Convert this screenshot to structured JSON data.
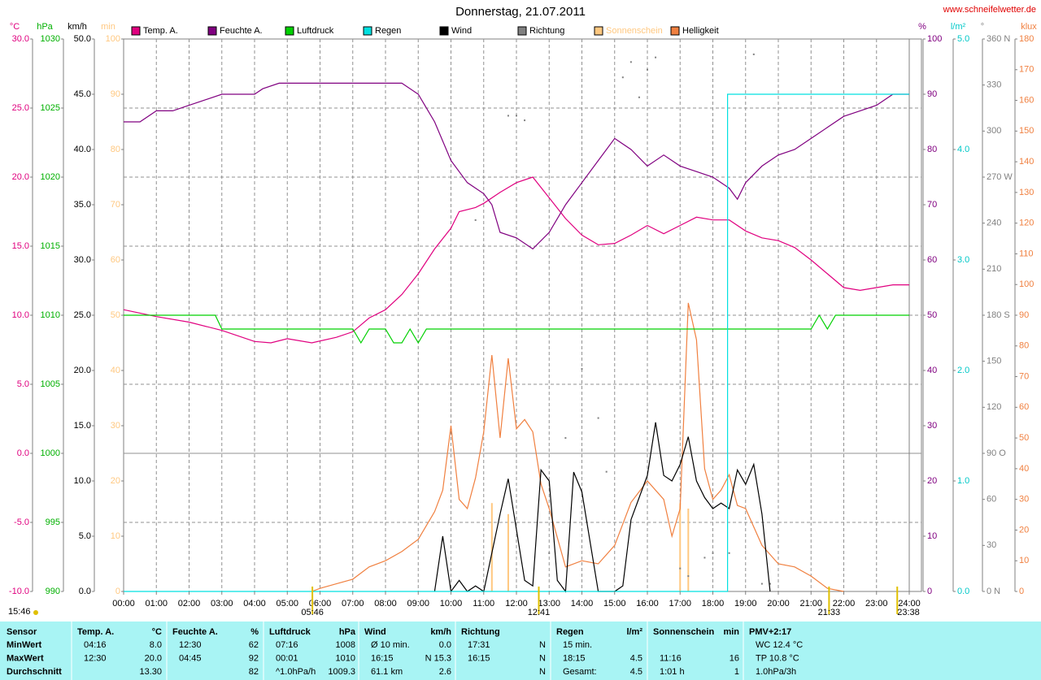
{
  "chart_data": {
    "type": "line",
    "title": "Donnerstag, 21.07.2011",
    "source": "www.schneifelwetter.de",
    "updated": "15:46",
    "xlim": [
      0,
      24
    ],
    "xticks": [
      {
        "value": 0,
        "label": "00:00"
      },
      {
        "value": 1,
        "label": "01:00"
      },
      {
        "value": 2,
        "label": "02:00"
      },
      {
        "value": 3,
        "label": "03:00"
      },
      {
        "value": 4,
        "label": "04:00"
      },
      {
        "value": 5,
        "label": "05:00"
      },
      {
        "value": 6,
        "label": "06:00"
      },
      {
        "value": 7,
        "label": "07:00"
      },
      {
        "value": 8,
        "label": "08:00"
      },
      {
        "value": 9,
        "label": "09:00"
      },
      {
        "value": 10,
        "label": "10:00"
      },
      {
        "value": 11,
        "label": "11:00"
      },
      {
        "value": 12,
        "label": "12:00"
      },
      {
        "value": 13,
        "label": "13:00"
      },
      {
        "value": 14,
        "label": "14:00"
      },
      {
        "value": 15,
        "label": "15:00"
      },
      {
        "value": 16,
        "label": "16:00"
      },
      {
        "value": 17,
        "label": "17:00"
      },
      {
        "value": 18,
        "label": "18:00"
      },
      {
        "value": 19,
        "label": "19:00"
      },
      {
        "value": 20,
        "label": "20:00"
      },
      {
        "value": 21,
        "label": "21:00"
      },
      {
        "value": 22,
        "label": "22:00"
      },
      {
        "value": 23,
        "label": "23:00"
      },
      {
        "value": 24,
        "label": "24:00"
      }
    ],
    "annotations": [
      {
        "value": 5.7667,
        "label": "05:46"
      },
      {
        "value": 12.6833,
        "label": "12:41"
      },
      {
        "value": 21.55,
        "label": "21:33"
      },
      {
        "value": 23.6333,
        "label": "23:38"
      }
    ],
    "grid": true,
    "axes": [
      {
        "label": "°C",
        "side": "left",
        "color": "#e0007f",
        "lim": [
          -10,
          30
        ],
        "ticks": [
          {
            "value": 30,
            "label": "30.0"
          },
          {
            "value": 25,
            "label": "25.0"
          },
          {
            "value": 20,
            "label": "20.0"
          },
          {
            "value": 15,
            "label": "15.0"
          },
          {
            "value": 10,
            "label": "10.0"
          },
          {
            "value": 5,
            "label": "5.0"
          },
          {
            "value": 0,
            "label": "0.0"
          },
          {
            "value": -5,
            "label": "-5.0"
          },
          {
            "value": -10,
            "label": "-10.0"
          }
        ]
      },
      {
        "label": "hPa",
        "side": "left",
        "color": "#00b000",
        "lim": [
          990,
          1030
        ],
        "ticks": [
          1030,
          1025,
          1020,
          1015,
          1010,
          1005,
          1000,
          995,
          990
        ]
      },
      {
        "label": "km/h",
        "side": "left",
        "color": "#000000",
        "lim": [
          0,
          50
        ],
        "ticks": [
          {
            "value": 50,
            "label": "50.0"
          },
          {
            "value": 45,
            "label": "45.0"
          },
          {
            "value": 40,
            "label": "40.0"
          },
          {
            "value": 35,
            "label": "35.0"
          },
          {
            "value": 30,
            "label": "30.0"
          },
          {
            "value": 25,
            "label": "25.0"
          },
          {
            "value": 20,
            "label": "20.0"
          },
          {
            "value": 15,
            "label": "15.0"
          },
          {
            "value": 10,
            "label": "10.0"
          },
          {
            "value": 5,
            "label": "5.0"
          },
          {
            "value": 0,
            "label": "0.0"
          }
        ]
      },
      {
        "label": "min",
        "side": "left",
        "color": "#ffc880",
        "lim": [
          0,
          100
        ],
        "ticks": [
          100,
          90,
          80,
          70,
          60,
          50,
          40,
          30,
          20,
          10,
          0
        ]
      },
      {
        "label": "%",
        "side": "right",
        "color": "#800080",
        "lim": [
          0,
          100
        ],
        "ticks": [
          100,
          90,
          80,
          70,
          60,
          50,
          40,
          30,
          20,
          10,
          0
        ]
      },
      {
        "label": "l/m²",
        "side": "right",
        "color": "#00c8c8",
        "lim": [
          0,
          5
        ],
        "ticks": [
          {
            "value": 5,
            "label": "5.0"
          },
          {
            "value": 4,
            "label": "4.0"
          },
          {
            "value": 3,
            "label": "3.0"
          },
          {
            "value": 2,
            "label": "2.0"
          },
          {
            "value": 1,
            "label": "1.0"
          },
          {
            "value": 0,
            "label": "0.0"
          }
        ]
      },
      {
        "label": "°",
        "side": "right",
        "color": "#808080",
        "lim": [
          0,
          360
        ],
        "ticks": [
          {
            "value": 360,
            "label": "360 N"
          },
          330,
          300,
          {
            "value": 270,
            "label": "270 W"
          },
          240,
          210,
          {
            "value": 180,
            "label": "180 S"
          },
          150,
          120,
          {
            "value": 90,
            "label": "90 O"
          },
          60,
          30,
          {
            "value": 0,
            "label": "0 N"
          }
        ]
      },
      {
        "label": "klux",
        "side": "right",
        "color": "#f08040",
        "lim": [
          0,
          180
        ],
        "ticks": [
          180,
          170,
          160,
          150,
          140,
          130,
          120,
          110,
          100,
          90,
          80,
          70,
          60,
          50,
          40,
          30,
          20,
          10,
          0
        ]
      }
    ],
    "series": [
      {
        "name": "Temp. A.",
        "color": "#e0007f",
        "axis": 0,
        "style": "line",
        "x": [
          0,
          1,
          2,
          3,
          4,
          4.5,
          5,
          5.75,
          6.5,
          7,
          7.5,
          8,
          8.5,
          9,
          9.5,
          10,
          10.25,
          10.75,
          11,
          11.5,
          12,
          12.5,
          13,
          13.5,
          14,
          14.5,
          15,
          15.5,
          16,
          16.5,
          17,
          17.5,
          18,
          18.5,
          19,
          19.5,
          20,
          20.5,
          21,
          21.5,
          22,
          22.5,
          23,
          23.5,
          24
        ],
        "values": [
          10.4,
          9.9,
          9.5,
          8.9,
          8.1,
          8.0,
          8.3,
          8.0,
          8.4,
          8.8,
          9.8,
          10.4,
          11.5,
          13.0,
          14.8,
          16.3,
          17.5,
          17.8,
          18.1,
          18.9,
          19.6,
          20.0,
          18.5,
          17.0,
          15.8,
          15.1,
          15.2,
          15.8,
          16.5,
          15.9,
          16.5,
          17.1,
          16.9,
          16.9,
          16.1,
          15.6,
          15.4,
          14.9,
          14.0,
          13.0,
          12.0,
          11.8,
          12.0,
          12.2,
          12.2
        ]
      },
      {
        "name": "Feuchte A.",
        "color": "#800080",
        "axis": 4,
        "style": "line",
        "x": [
          0,
          0.5,
          1,
          1.5,
          2,
          2.5,
          3,
          4,
          4.25,
          4.75,
          8.5,
          9,
          9.5,
          10,
          10.5,
          11,
          11.25,
          11.5,
          12,
          12.5,
          13,
          13.5,
          14,
          14.5,
          15,
          15.5,
          16,
          16.5,
          17,
          17.5,
          18,
          18.5,
          18.75,
          19,
          19.5,
          20,
          20.5,
          21,
          21.5,
          22,
          22.5,
          23,
          23.5,
          24
        ],
        "values": [
          85,
          85,
          87,
          87,
          88,
          89,
          90,
          90,
          91,
          92,
          92,
          90,
          85,
          78,
          74,
          72,
          70,
          65,
          64,
          62,
          65,
          70,
          74,
          78,
          82,
          80,
          77,
          79,
          77,
          76,
          75,
          73,
          71,
          74,
          77,
          79,
          80,
          82,
          84,
          86,
          87,
          88,
          90,
          90
        ]
      },
      {
        "name": "Luftdruck",
        "color": "#00d000",
        "axis": 1,
        "style": "line",
        "x": [
          0,
          2.8,
          3,
          7,
          7.25,
          7.5,
          8,
          8.25,
          8.5,
          8.75,
          9,
          9.25,
          21,
          21.25,
          21.5,
          21.75,
          24
        ],
        "values": [
          1010,
          1010,
          1009,
          1009,
          1008,
          1009,
          1009,
          1008,
          1008,
          1009,
          1008,
          1009,
          1009,
          1010,
          1009,
          1010,
          1010
        ]
      },
      {
        "name": "Regen",
        "color": "#00e0e0",
        "axis": 5,
        "style": "line",
        "x": [
          0,
          18.45,
          18.45,
          24
        ],
        "values": [
          0,
          0,
          4.5,
          4.5
        ]
      },
      {
        "name": "Wind",
        "color": "#000000",
        "axis": 2,
        "style": "line",
        "x": [
          9.5,
          9.75,
          10,
          10.25,
          10.5,
          10.75,
          11,
          11.5,
          11.75,
          12.25,
          12.5,
          12.75,
          13,
          13.25,
          13.5,
          13.75,
          14,
          14.5,
          15,
          15.25,
          15.5,
          16,
          16.25,
          16.5,
          16.75,
          17,
          17.25,
          17.5,
          17.75,
          18,
          18.25,
          18.5,
          18.75,
          19,
          19.25,
          19.5,
          19.75
        ],
        "values": [
          0,
          5,
          0,
          1,
          0,
          0.5,
          0,
          7,
          10.2,
          1,
          0.5,
          11,
          10,
          1,
          0,
          10.8,
          9,
          0,
          0,
          0.5,
          6.5,
          10.5,
          15.3,
          10.5,
          10,
          11.5,
          14,
          10,
          8.5,
          7.5,
          8,
          7.5,
          11,
          9.7,
          11.5,
          7,
          0
        ]
      },
      {
        "name": "Richtung",
        "color": "#808080",
        "axis": 6,
        "style": "dots",
        "x": [
          10.75,
          11.75,
          12.0,
          12.25,
          13.0,
          13.5,
          14.0,
          14.5,
          14.75,
          15.25,
          15.5,
          15.75,
          16.0,
          16.25,
          17.0,
          17.25,
          17.75,
          18.0,
          18.5,
          19.25,
          19.5,
          19.75
        ],
        "values": [
          242,
          310,
          310,
          307,
          25,
          100,
          145,
          113,
          78,
          335,
          345,
          322,
          340,
          348,
          15,
          10,
          22,
          25,
          25,
          350,
          5,
          5
        ]
      },
      {
        "name": "Sonnenschein",
        "color": "#ffc880",
        "axis": 3,
        "style": "bars",
        "x": [
          11.25,
          11.75,
          17.0,
          17.25
        ],
        "values": [
          16,
          14,
          16,
          15
        ]
      },
      {
        "name": "Helligkeit",
        "color": "#f08040",
        "axis": 7,
        "style": "line",
        "x": [
          5.75,
          6,
          6.5,
          7,
          7.5,
          8,
          8.5,
          9,
          9.5,
          9.75,
          10,
          10.25,
          10.5,
          10.75,
          11,
          11.25,
          11.5,
          11.75,
          12,
          12.25,
          12.5,
          12.75,
          13,
          13.5,
          14,
          14.5,
          15,
          15.5,
          16,
          16.5,
          16.75,
          17,
          17.25,
          17.5,
          17.75,
          18,
          18.25,
          18.5,
          18.75,
          19,
          19.5,
          20,
          20.5,
          21,
          21.5,
          22
        ],
        "values": [
          0,
          1,
          2.5,
          4,
          8,
          10,
          13,
          17,
          26,
          33,
          54,
          30,
          27,
          37,
          52,
          77,
          50,
          76,
          53,
          56,
          52,
          35,
          27,
          8,
          10,
          9,
          15,
          29,
          36,
          30,
          18,
          27,
          94,
          82,
          40,
          30,
          33,
          38,
          28,
          27,
          15,
          9,
          8,
          5,
          1,
          0
        ]
      }
    ]
  },
  "table": {
    "header": [
      [
        "Sensor",
        null
      ],
      [
        "Temp. A.",
        "°C"
      ],
      [
        "Feuchte A.",
        "%"
      ],
      [
        "Luftdruck",
        "hPa"
      ],
      [
        "Wind",
        "km/h"
      ],
      [
        "Richtung",
        null
      ],
      [
        "Regen",
        "l/m²"
      ],
      [
        "Sonnenschein",
        "min"
      ],
      [
        "PMV+2:17",
        null
      ]
    ],
    "rows": [
      [
        [
          "MinWert",
          null
        ],
        [
          "04:16",
          "8.0"
        ],
        [
          "12:30",
          "62"
        ],
        [
          "07:16",
          "1008"
        ],
        [
          "Ø 10 min.",
          "0.0"
        ],
        [
          "17:31",
          "N"
        ],
        [
          "15 min.",
          null
        ],
        [
          null,
          null
        ],
        [
          "WC 12.4 °C",
          null
        ]
      ],
      [
        [
          "MaxWert",
          null
        ],
        [
          "12:30",
          "20.0"
        ],
        [
          "04:45",
          "92"
        ],
        [
          "00:01",
          "1010"
        ],
        [
          "16:15",
          "N 15.3"
        ],
        [
          "16:15",
          "N"
        ],
        [
          "18:15",
          "4.5"
        ],
        [
          "11:16",
          "16"
        ],
        [
          "TP 10.8 °C",
          null
        ]
      ],
      [
        [
          "Durchschnitt",
          null
        ],
        [
          null,
          "13.30"
        ],
        [
          null,
          "82"
        ],
        [
          "^1.0hPa/h",
          "1009.3"
        ],
        [
          "61.1 km",
          "2.6"
        ],
        [
          null,
          "N"
        ],
        [
          "Gesamt:",
          "4.5"
        ],
        [
          "1:01 h",
          "1"
        ],
        [
          "1.0hPa/3h",
          null
        ]
      ]
    ]
  }
}
